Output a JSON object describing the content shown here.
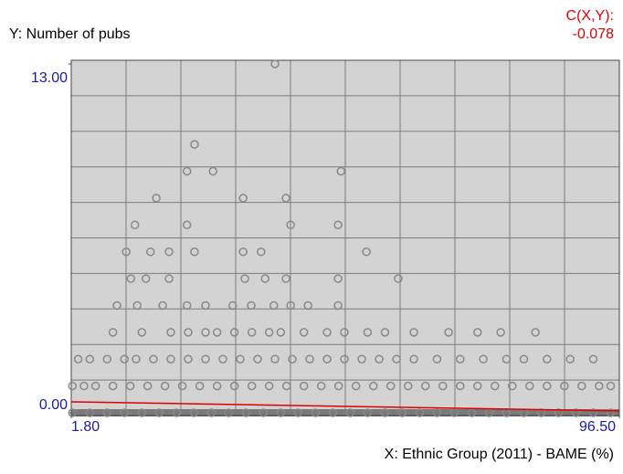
{
  "chart_data": {
    "type": "scatter",
    "y_label": "Y: Number of pubs",
    "x_label": "X: Ethnic Group (2011) - BAME (%)",
    "correlation_label": "C(X,Y):",
    "correlation_value": -0.078,
    "xlim": [
      1.8,
      96.5
    ],
    "ylim": [
      0,
      13
    ],
    "xticks": [
      {
        "value": 1.8,
        "label": "1.80"
      },
      {
        "value": 96.5,
        "label": "96.50"
      }
    ],
    "yticks": [
      {
        "value": 0,
        "label": "0.00"
      },
      {
        "value": 13,
        "label": "13.00"
      }
    ],
    "grid": true,
    "color": "#888888",
    "fit_color": "#e00000",
    "fit_x": [
      1.8,
      96.5
    ],
    "fit_y": [
      0.41,
      0.07
    ],
    "x": [
      37.0,
      23.1,
      21.8,
      26.3,
      48.4,
      16.5,
      31.5,
      38.9,
      12.8,
      21.8,
      39.7,
      47.9,
      11.3,
      15.5,
      18.7,
      23.1,
      31.5,
      34.6,
      52.8,
      12.1,
      14.7,
      18.7,
      31.8,
      35.3,
      38.9,
      47.9,
      58.3,
      9.7,
      13.2,
      17.6,
      21.8,
      25,
      29.7,
      32.9,
      36.8,
      39.7,
      42.7,
      47.9,
      9,
      14,
      19,
      22,
      25,
      27,
      30,
      33,
      36,
      38,
      42,
      46,
      49,
      53,
      56,
      61,
      67,
      72,
      76,
      82,
      3,
      5,
      8,
      11,
      13,
      16,
      19,
      22,
      25,
      28,
      31,
      34,
      37,
      40,
      43,
      46,
      49,
      52,
      55,
      58,
      61,
      65,
      69,
      73,
      77,
      80,
      84,
      88,
      92,
      2,
      4,
      6,
      9,
      12,
      15,
      18,
      21,
      24,
      27,
      30,
      33,
      36,
      39,
      42,
      45,
      48,
      51,
      54,
      57,
      60,
      63,
      66,
      69,
      72,
      75,
      78,
      81,
      84,
      87,
      90,
      93,
      95,
      2,
      5,
      8,
      11,
      14,
      17,
      20,
      23,
      26,
      29,
      32,
      35,
      38,
      41,
      44,
      47,
      50,
      53,
      56,
      59,
      62,
      65,
      68,
      71,
      74,
      77,
      80,
      83,
      86,
      89,
      92,
      95
    ],
    "values": [
      13,
      10,
      9,
      9,
      9,
      8,
      8,
      8,
      7,
      7,
      7,
      7,
      6,
      6,
      6,
      6,
      6,
      6,
      6,
      5,
      5,
      5,
      5,
      5,
      5,
      5,
      5,
      4,
      4,
      4,
      4,
      4,
      4,
      4,
      4,
      4,
      4,
      4,
      3,
      3,
      3,
      3,
      3,
      3,
      3,
      3,
      3,
      3,
      3,
      3,
      3,
      3,
      3,
      3,
      3,
      3,
      3,
      3,
      2,
      2,
      2,
      2,
      2,
      2,
      2,
      2,
      2,
      2,
      2,
      2,
      2,
      2,
      2,
      2,
      2,
      2,
      2,
      2,
      2,
      2,
      2,
      2,
      2,
      2,
      2,
      2,
      2,
      1,
      1,
      1,
      1,
      1,
      1,
      1,
      1,
      1,
      1,
      1,
      1,
      1,
      1,
      1,
      1,
      1,
      1,
      1,
      1,
      1,
      1,
      1,
      1,
      1,
      1,
      1,
      1,
      1,
      1,
      1,
      1,
      1,
      0,
      0,
      0,
      0,
      0,
      0,
      0,
      0,
      0,
      0,
      0,
      0,
      0,
      0,
      0,
      0,
      0,
      0,
      0,
      0,
      0,
      0,
      0,
      0,
      0,
      0,
      0,
      0,
      0,
      0,
      0,
      0
    ]
  }
}
